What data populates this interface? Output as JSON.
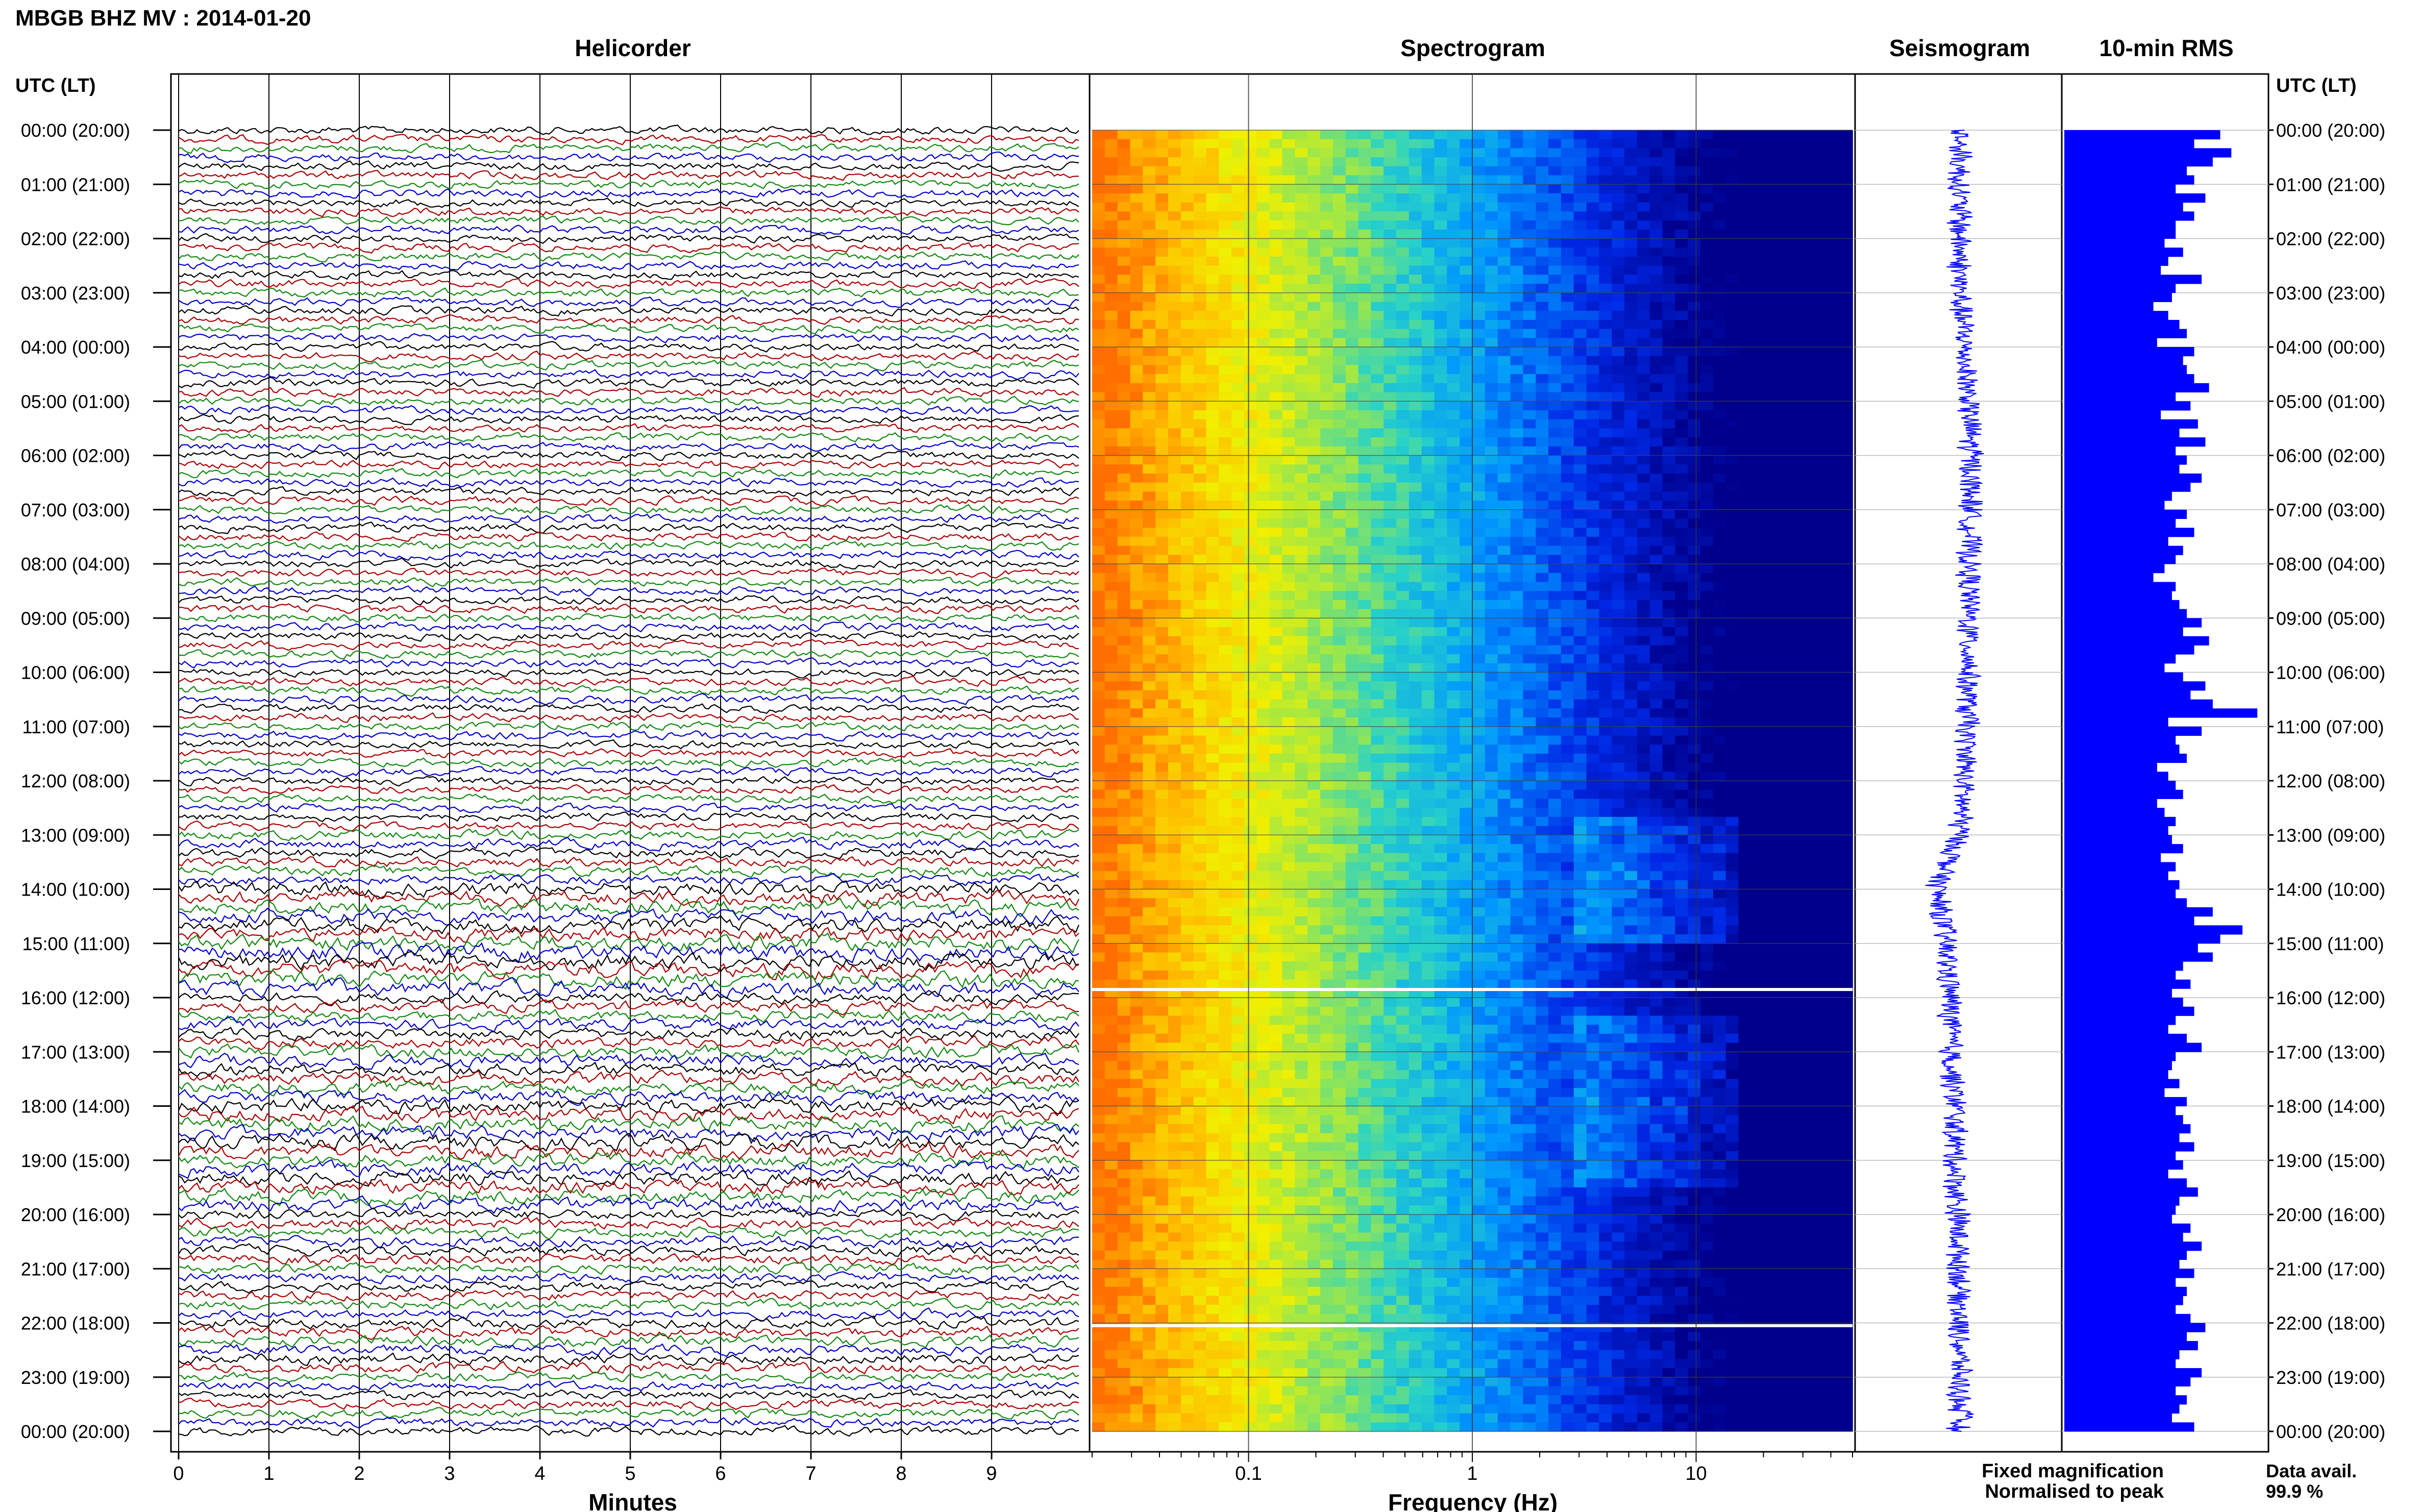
{
  "header": {
    "title": "MBGB BHZ MV : 2014-01-20"
  },
  "panels": {
    "helicorder": "Helicorder",
    "spectrogram": "Spectrogram",
    "seismogram": "Seismogram",
    "rms": "10-min RMS"
  },
  "axes": {
    "left_axis_label": "UTC (LT)",
    "right_axis_label": "UTC (LT)",
    "time_labels": [
      "00:00 (20:00)",
      "01:00 (21:00)",
      "02:00 (22:00)",
      "03:00 (23:00)",
      "04:00 (00:00)",
      "05:00 (01:00)",
      "06:00 (02:00)",
      "07:00 (03:00)",
      "08:00 (04:00)",
      "09:00 (05:00)",
      "10:00 (06:00)",
      "11:00 (07:00)",
      "12:00 (08:00)",
      "13:00 (09:00)",
      "14:00 (10:00)",
      "15:00 (11:00)",
      "16:00 (12:00)",
      "17:00 (13:00)",
      "18:00 (14:00)",
      "19:00 (15:00)",
      "20:00 (16:00)",
      "21:00 (17:00)",
      "22:00 (18:00)",
      "23:00 (19:00)",
      "00:00 (20:00)"
    ],
    "minutes_label": "Minutes",
    "minute_ticks": [
      "0",
      "1",
      "2",
      "3",
      "4",
      "5",
      "6",
      "7",
      "8",
      "9"
    ],
    "frequency_label": "Frequency (Hz)",
    "frequency_ticks": [
      "0.1",
      "1",
      "10"
    ]
  },
  "legend": {
    "fixed": "Fixed magnification",
    "normalised": "Normalised to peak",
    "fixed_color": "#0000ff",
    "normalised_color": "#ff0000"
  },
  "availability": {
    "label": "Data avail.",
    "value": "99.9 %"
  },
  "colors": {
    "trace_cycle": [
      "#000000",
      "#aa0000",
      "#118811",
      "#0000cc"
    ],
    "rms_bar": "#0000ff",
    "seismogram": "#0000ff"
  },
  "chart_data": [
    {
      "type": "line",
      "title": "Helicorder",
      "xlabel": "Minutes",
      "x_range": [
        0,
        10
      ],
      "rows_per_hour": 6,
      "hours": 24,
      "noise_level_by_hour": [
        1,
        1,
        1,
        1,
        1,
        1,
        1,
        1,
        1,
        1,
        1,
        1,
        1,
        1.2,
        1.8,
        2.0,
        1.4,
        1.6,
        1.8,
        1.7,
        1.3,
        1.2,
        1.3,
        1.1
      ]
    },
    {
      "type": "heatmap",
      "title": "Spectrogram",
      "xlabel": "Frequency (Hz)",
      "x_scale": "log",
      "xlim": [
        0.02,
        50
      ],
      "white_gaps_utc_hours": [
        15.85,
        22.05
      ]
    },
    {
      "type": "line",
      "title": "Seismogram",
      "orientation": "vertical",
      "trace_center_by_hour": [
        0,
        0,
        0,
        0,
        0.1,
        0.2,
        0.25,
        0.25,
        0.2,
        0.2,
        0.2,
        0.15,
        0.1,
        0.0,
        -0.5,
        -0.3,
        -0.2,
        -0.2,
        -0.1,
        -0.1,
        -0.05,
        0,
        0,
        0,
        0
      ]
    },
    {
      "type": "bar",
      "title": "10-min RMS",
      "orientation": "horizontal",
      "values": [
        0.42,
        0.35,
        0.45,
        0.4,
        0.33,
        0.35,
        0.3,
        0.38,
        0.32,
        0.35,
        0.3,
        0.3,
        0.27,
        0.32,
        0.28,
        0.26,
        0.37,
        0.3,
        0.29,
        0.24,
        0.28,
        0.31,
        0.33,
        0.25,
        0.35,
        0.32,
        0.33,
        0.35,
        0.39,
        0.3,
        0.34,
        0.26,
        0.36,
        0.31,
        0.38,
        0.3,
        0.33,
        0.31,
        0.37,
        0.34,
        0.29,
        0.27,
        0.33,
        0.3,
        0.35,
        0.28,
        0.32,
        0.3,
        0.27,
        0.24,
        0.3,
        0.29,
        0.31,
        0.33,
        0.37,
        0.32,
        0.39,
        0.35,
        0.3,
        0.27,
        0.32,
        0.38,
        0.34,
        0.4,
        0.52,
        0.28,
        0.37,
        0.3,
        0.31,
        0.33,
        0.25,
        0.28,
        0.3,
        0.32,
        0.25,
        0.27,
        0.3,
        0.28,
        0.29,
        0.32,
        0.26,
        0.3,
        0.28,
        0.31,
        0.3,
        0.33,
        0.4,
        0.35,
        0.48,
        0.42,
        0.36,
        0.4,
        0.32,
        0.3,
        0.34,
        0.29,
        0.32,
        0.35,
        0.3,
        0.28,
        0.33,
        0.37,
        0.3,
        0.29,
        0.28,
        0.31,
        0.27,
        0.33,
        0.3,
        0.32,
        0.34,
        0.31,
        0.35,
        0.3,
        0.32,
        0.28,
        0.33,
        0.36,
        0.31,
        0.3,
        0.29,
        0.34,
        0.32,
        0.37,
        0.33,
        0.31,
        0.35,
        0.3,
        0.33,
        0.32,
        0.3,
        0.34,
        0.38,
        0.33,
        0.36,
        0.31,
        0.3,
        0.37,
        0.34,
        0.3,
        0.33,
        0.31,
        0.29,
        0.35
      ]
    }
  ]
}
